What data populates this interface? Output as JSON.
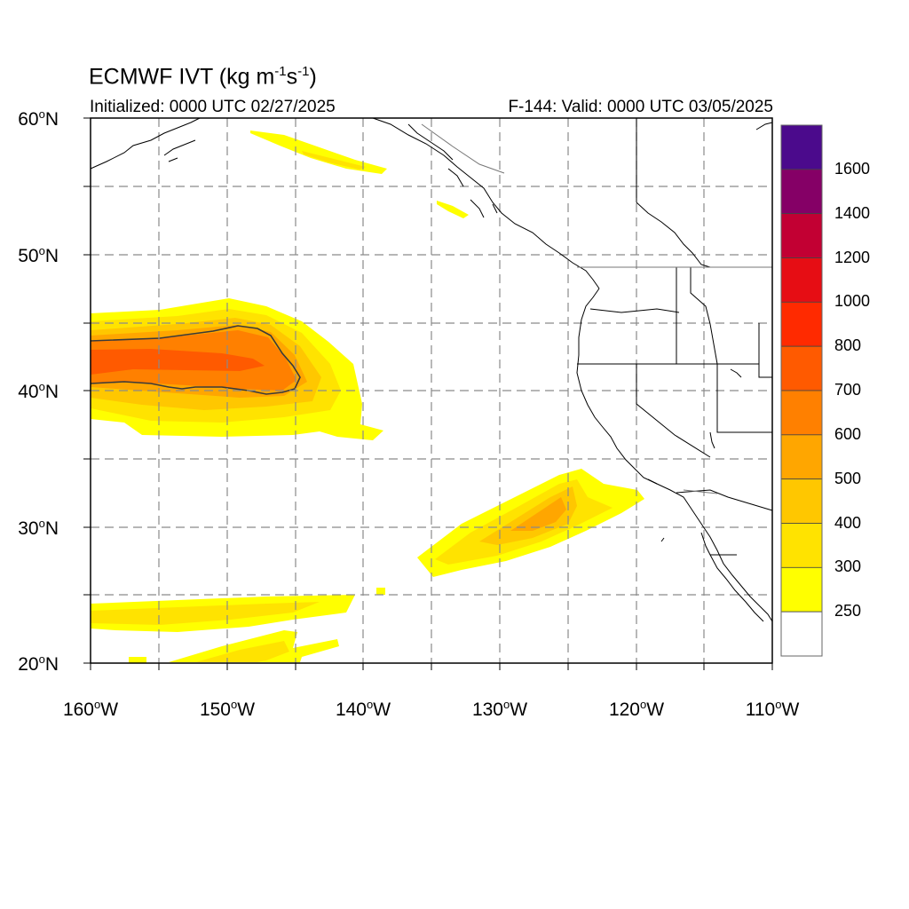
{
  "title": {
    "main": "ECMWF IVT",
    "unit_prefix": "(kg m",
    "unit_exp1": "-1",
    "unit_s": "s",
    "unit_exp2": "-1",
    "unit_suffix": ")"
  },
  "subtitle_left": "Initialized: 0000 UTC 02/27/2025",
  "subtitle_right": "F-144: Valid: 0000 UTC 03/05/2025",
  "latitude_labels": [
    "60",
    "50",
    "40",
    "30",
    "20"
  ],
  "latitude_suffix": "N",
  "longitude_labels": [
    "160",
    "150",
    "140",
    "130",
    "120",
    "110"
  ],
  "longitude_suffix": "W",
  "degree_mark": "o",
  "map_extent": {
    "lon_range": [
      "160W",
      "110W"
    ],
    "lat_range": [
      "20N",
      "60N"
    ]
  },
  "colorbar": {
    "labels": [
      "1600",
      "1400",
      "1200",
      "1000",
      "800",
      "700",
      "600",
      "500",
      "400",
      "300",
      "250"
    ],
    "colors": [
      "#4b0a8c",
      "#850066",
      "#c20033",
      "#e60d14",
      "#ff2a00",
      "#ff5a00",
      "#ff8000",
      "#ffa600",
      "#ffc700",
      "#ffe300",
      "#ffff00",
      "#ffffff"
    ]
  },
  "features": [
    "IVT maximum 700 centered near 42N 157W with 600 contour outline",
    "Atmospheric river band toward southern California near 30N 128W"
  ]
}
